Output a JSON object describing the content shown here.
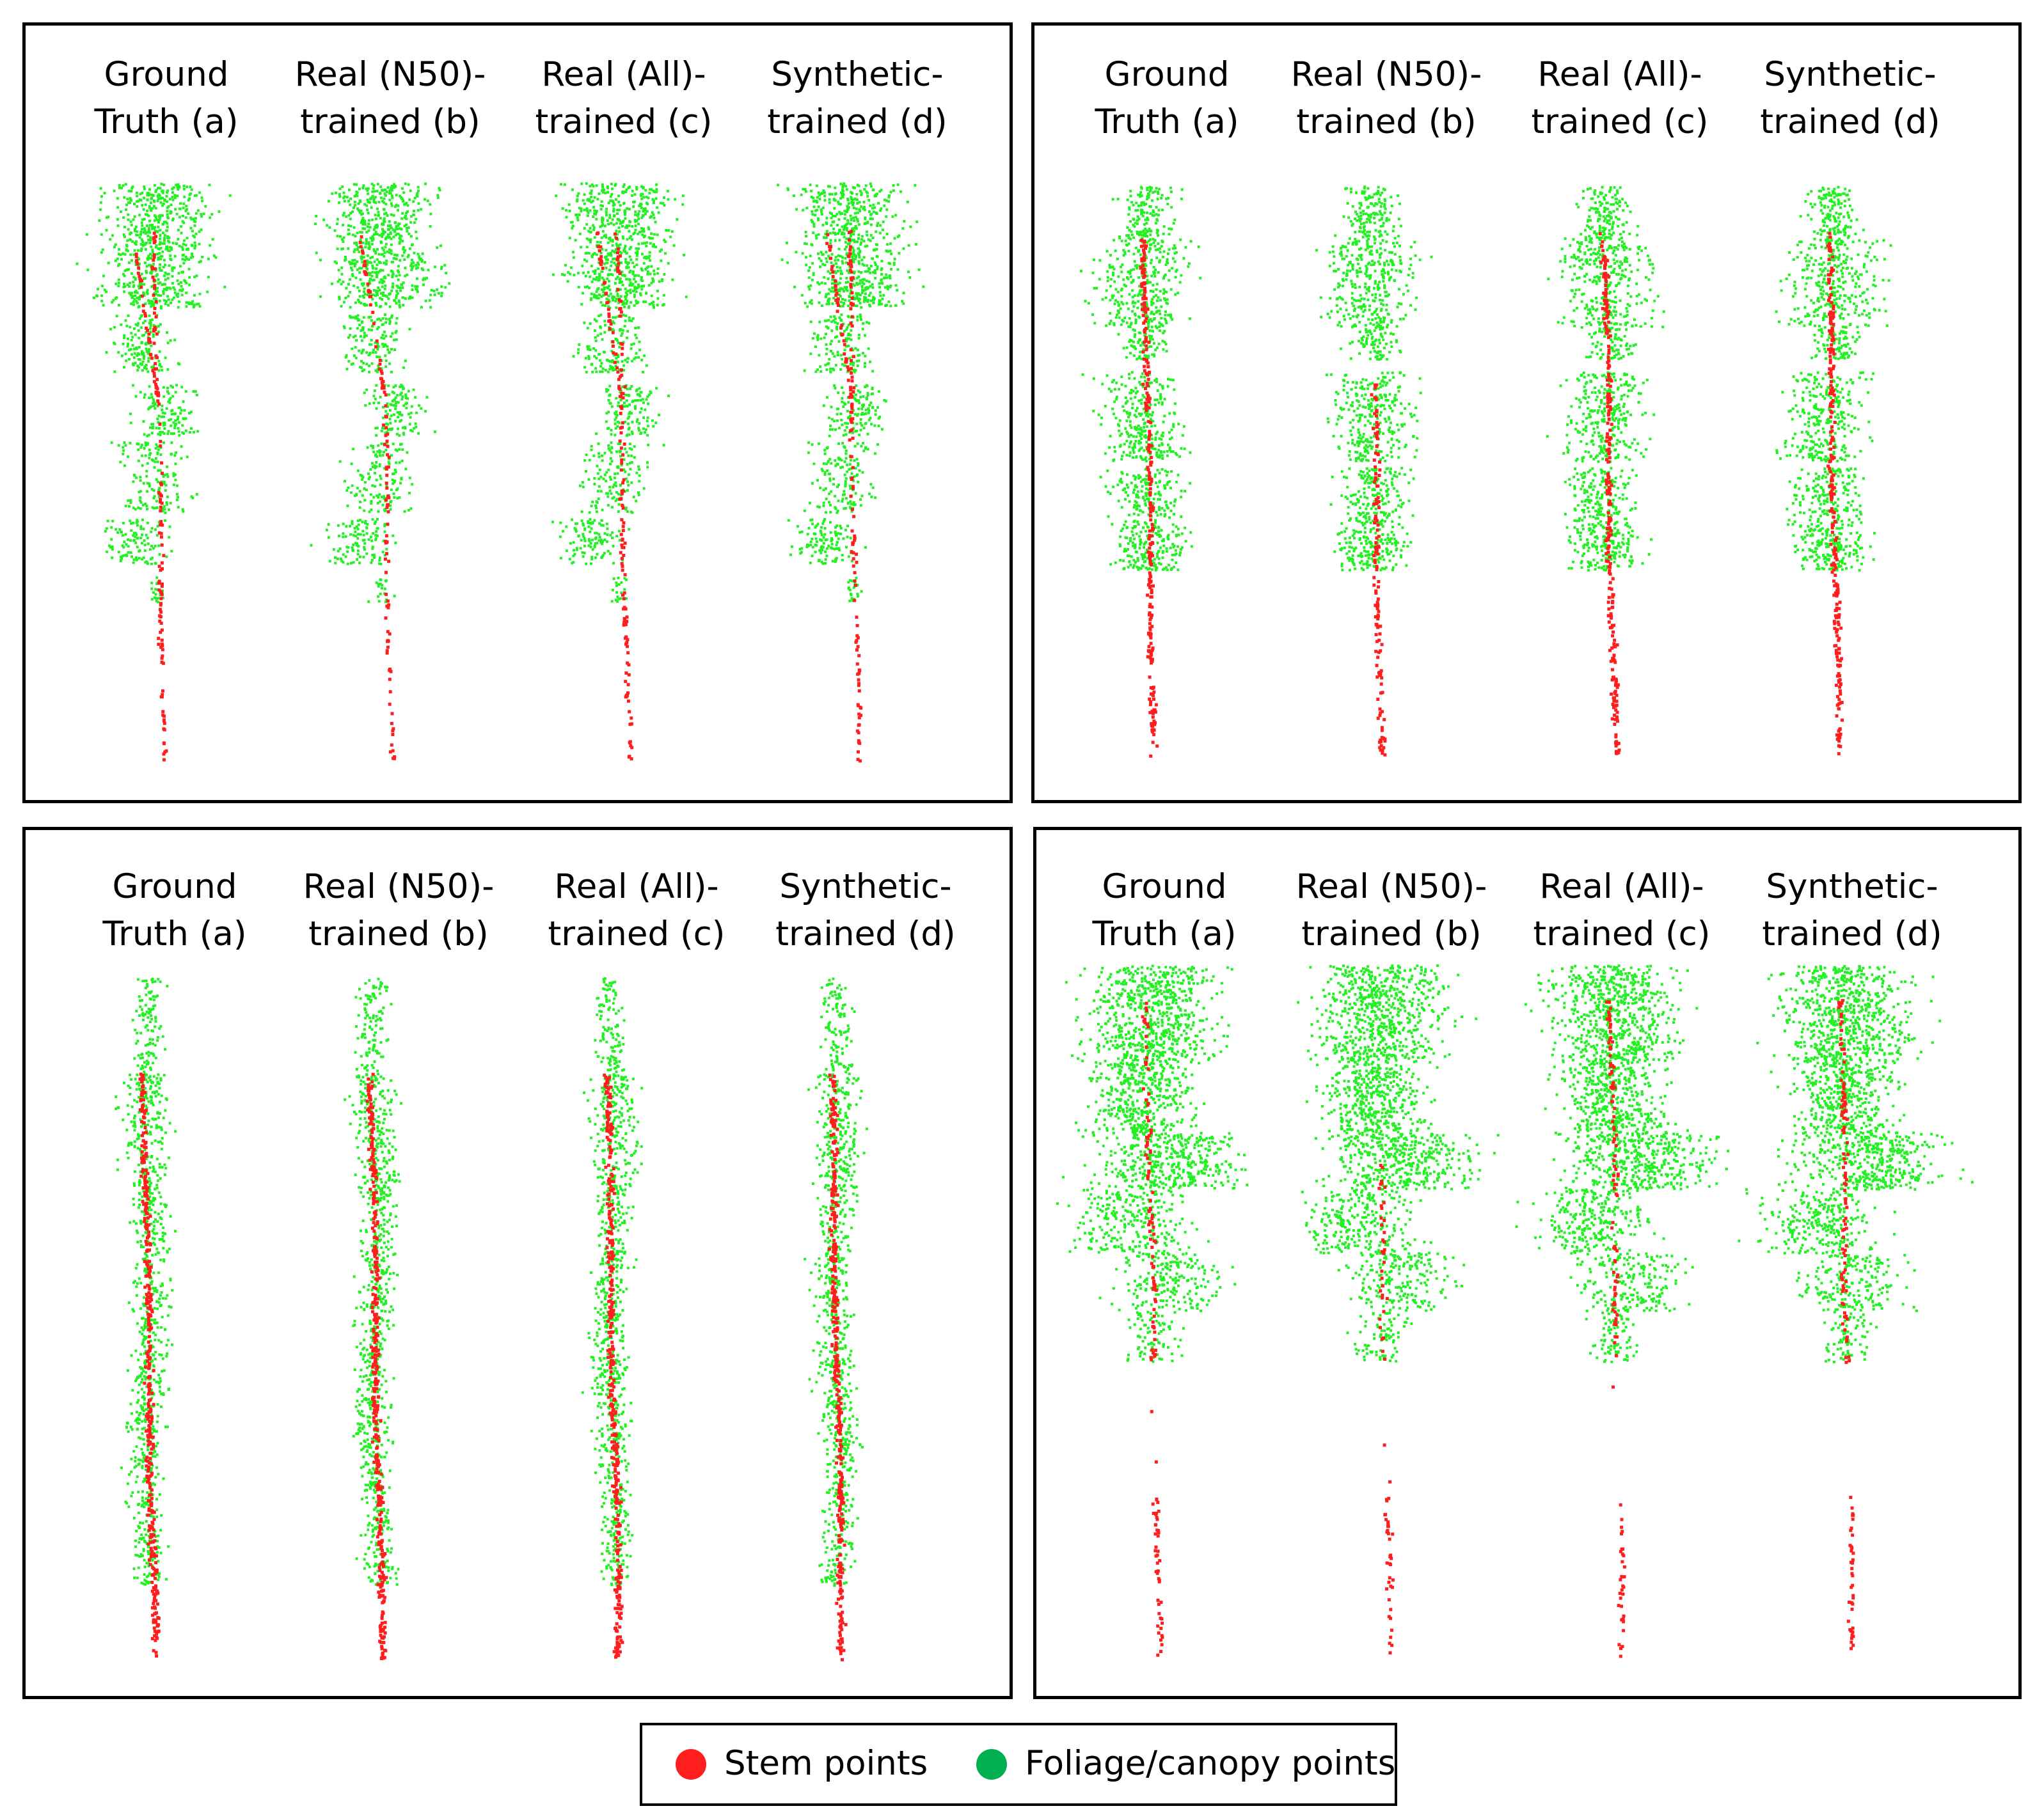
{
  "colors": {
    "stem": "#ff1e1e",
    "foliage": "#22f022",
    "legend_foliage": "#00b050"
  },
  "panels": [
    {
      "tree_shape": "two-leader crown, sparse lower whorls",
      "labels": [
        "Ground\nTruth (a)",
        "Real (N50)-\ntrained (b)",
        "Real (All)-\ntrained (c)",
        "Synthetic-\ntrained (d)"
      ]
    },
    {
      "tree_shape": "narrow conifer with branch whorls",
      "labels": [
        "Ground\nTruth (a)",
        "Real (N50)-\ntrained (b)",
        "Real (All)-\ntrained (c)",
        "Synthetic-\ntrained (d)"
      ]
    },
    {
      "tree_shape": "tall slender stem, green down to base",
      "labels": [
        "Ground\nTruth (a)",
        "Real (N50)-\ntrained (b)",
        "Real (All)-\ntrained (c)",
        "Synthetic-\ntrained (d)"
      ]
    },
    {
      "tree_shape": "broad dense crown, bare lower stem",
      "labels": [
        "Ground\nTruth (a)",
        "Real (N50)-\ntrained (b)",
        "Real (All)-\ntrained (c)",
        "Synthetic-\ntrained (d)"
      ]
    }
  ],
  "legend": {
    "stem_label": "Stem points",
    "foliage_label": "Foliage/canopy points"
  }
}
